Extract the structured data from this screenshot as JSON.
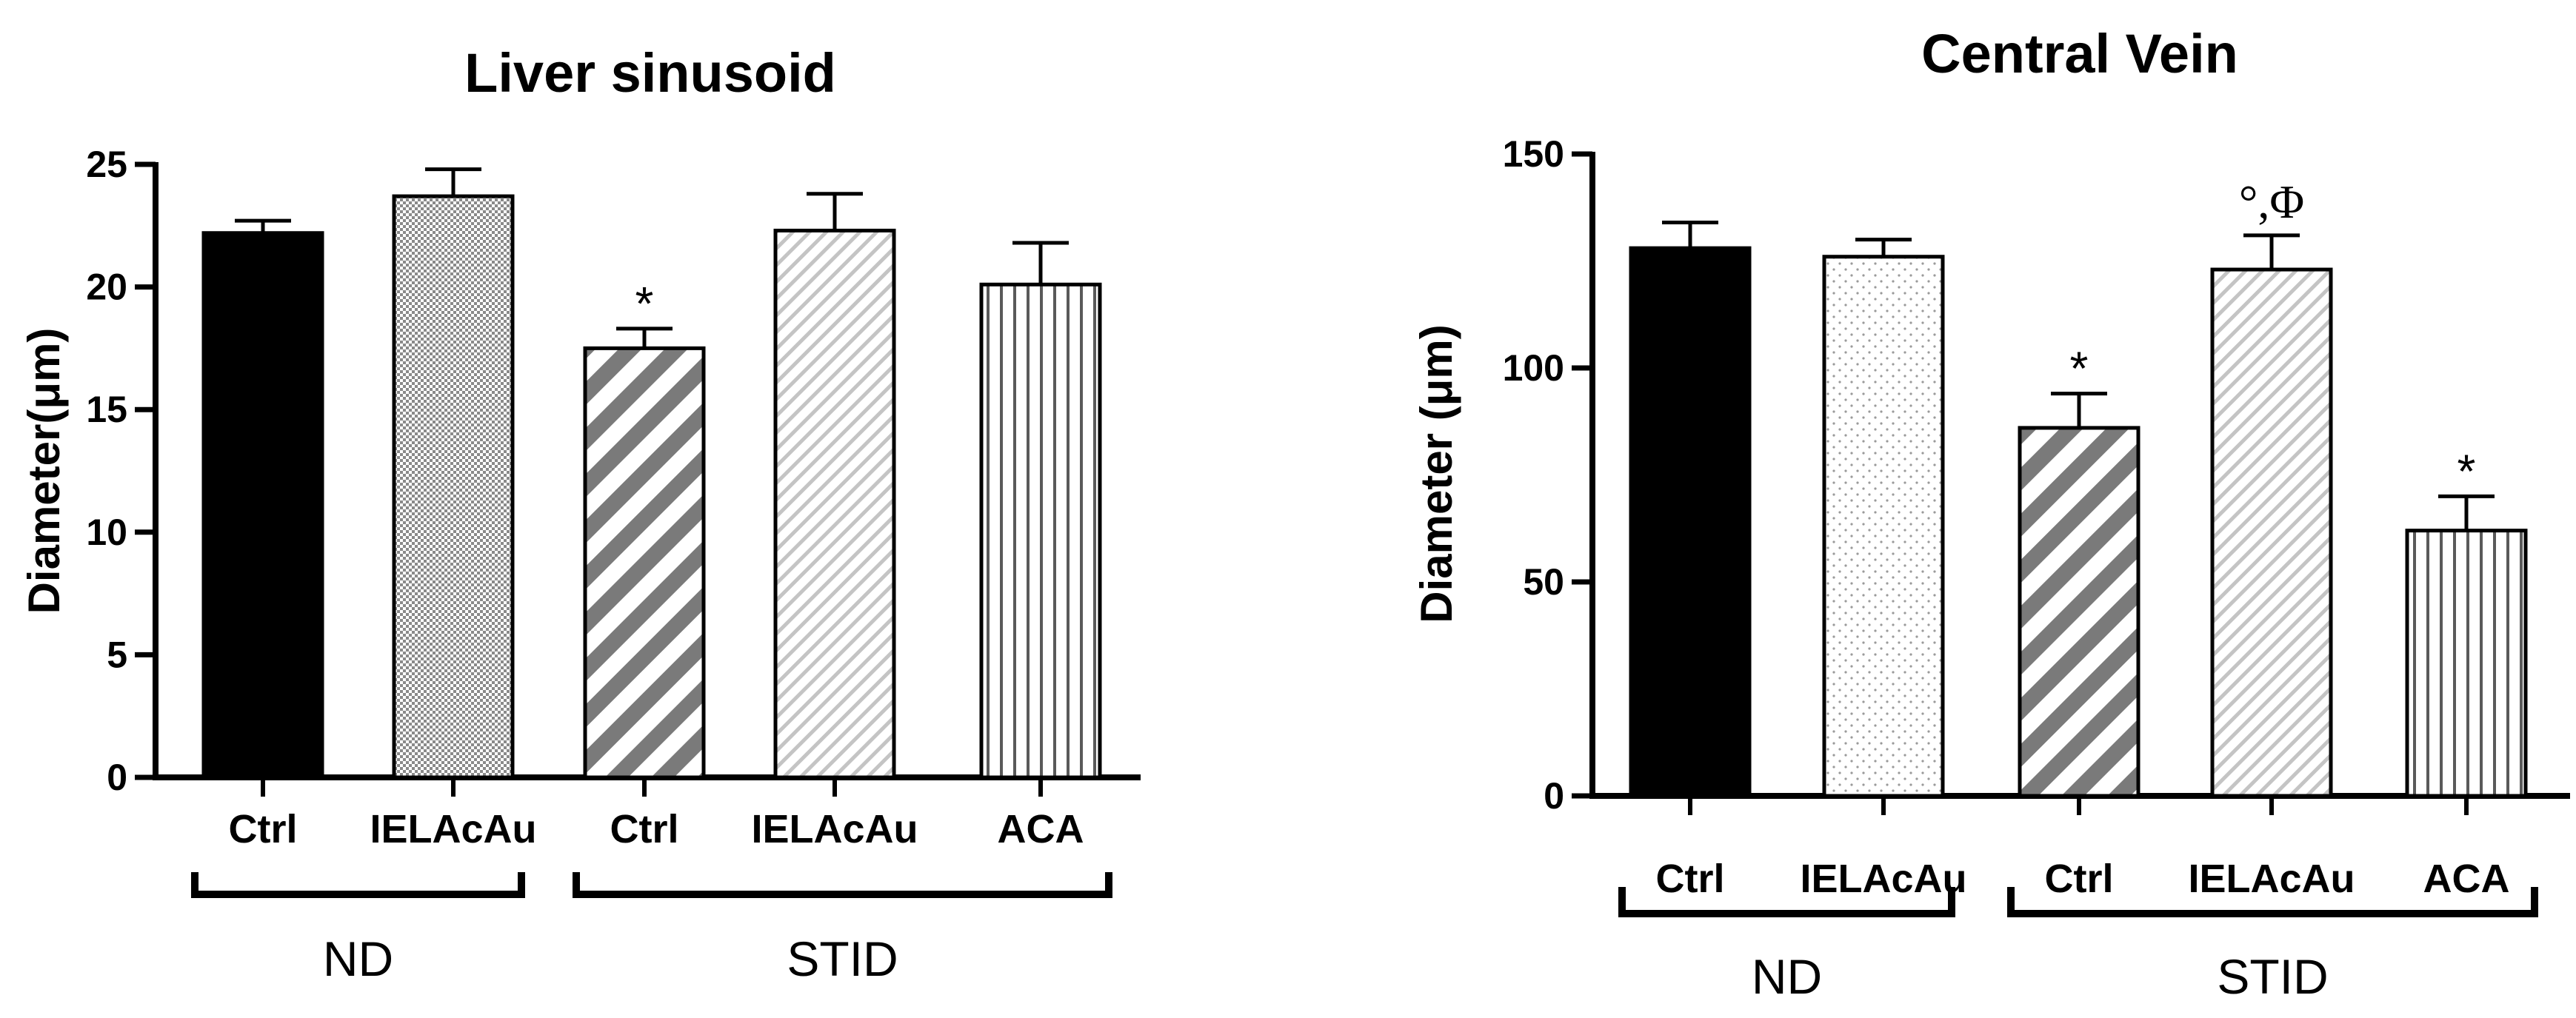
{
  "chart_data": [
    {
      "type": "bar",
      "title": "Liver sinusoid",
      "ylabel": "Diameter(μm)",
      "xlabel": "",
      "ylim": [
        0,
        25
      ],
      "yticks": [
        "0",
        "5",
        "10",
        "15",
        "20",
        "25"
      ],
      "categories": [
        "Ctrl",
        "IELAcAu",
        "Ctrl",
        "IELAcAu",
        "ACA"
      ],
      "values": [
        22.2,
        23.7,
        17.5,
        22.3,
        20.1
      ],
      "errors": [
        0.5,
        1.1,
        0.8,
        1.5,
        1.7
      ],
      "annotations": [
        "",
        "",
        "*",
        "",
        ""
      ],
      "groups": [
        {
          "label": "ND",
          "from": 0,
          "to": 1
        },
        {
          "label": "STID",
          "from": 2,
          "to": 4
        }
      ],
      "patterns": [
        "solid",
        "checker",
        "diag-dark",
        "diag-light",
        "vertical"
      ]
    },
    {
      "type": "bar",
      "title": "Central Vein",
      "ylabel": "Diameter (μm)",
      "xlabel": "",
      "ylim": [
        0,
        150
      ],
      "yticks": [
        "0",
        "50",
        "100",
        "150"
      ],
      "categories": [
        "Ctrl",
        "IELAcAu",
        "Ctrl",
        "IELAcAu",
        "ACA"
      ],
      "values": [
        128,
        126,
        86,
        123,
        62
      ],
      "errors": [
        6,
        4,
        8,
        8,
        8
      ],
      "annotations": [
        "",
        "",
        "*",
        "°,Φ",
        "*"
      ],
      "groups": [
        {
          "label": "ND",
          "from": 0,
          "to": 1
        },
        {
          "label": "STID",
          "from": 2,
          "to": 4
        }
      ],
      "patterns": [
        "solid",
        "dots",
        "diag-dark",
        "diag-light",
        "vertical"
      ]
    }
  ]
}
